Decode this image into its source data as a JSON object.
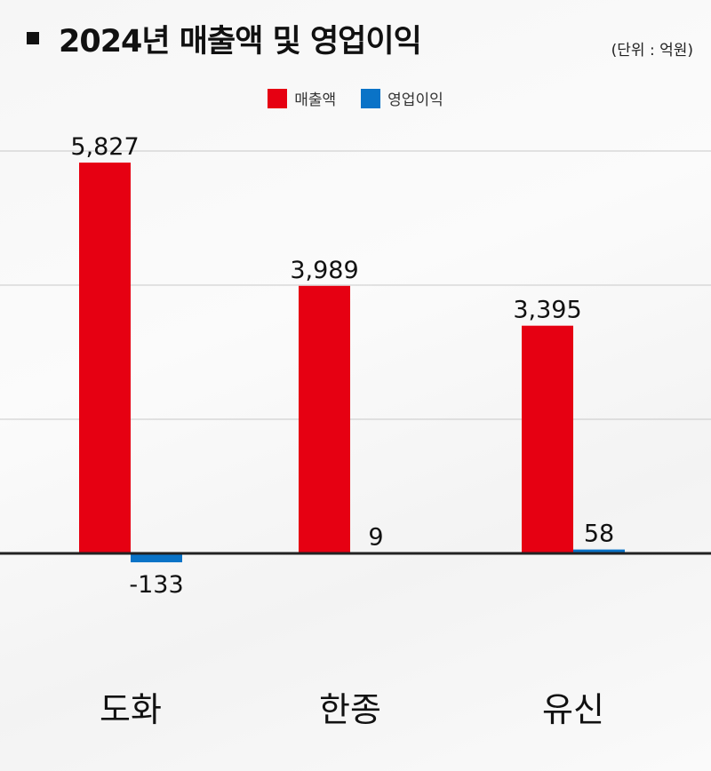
{
  "title": "2024년 매출액 및 영업이익",
  "unit_note": "(단위 : 억원)",
  "legend": [
    {
      "label": "매출액",
      "color": "#e60012"
    },
    {
      "label": "영업이익",
      "color": "#0a73c7"
    }
  ],
  "chart_data": {
    "type": "bar",
    "title": "2024년 매출액 및 영업이익",
    "categories": [
      "도화",
      "한종",
      "유신"
    ],
    "series": [
      {
        "name": "매출액",
        "color": "#e60012",
        "values": [
          5827,
          3989,
          3395
        ],
        "labels": [
          "5,827",
          "3,989",
          "3,395"
        ]
      },
      {
        "name": "영업이익",
        "color": "#0a73c7",
        "values": [
          -133,
          9,
          58
        ],
        "labels": [
          "-133",
          "9",
          "58"
        ]
      }
    ],
    "ylim": [
      -700,
      6700
    ],
    "grid": true,
    "legend_position": "top-center",
    "xlabel": "",
    "ylabel": ""
  }
}
